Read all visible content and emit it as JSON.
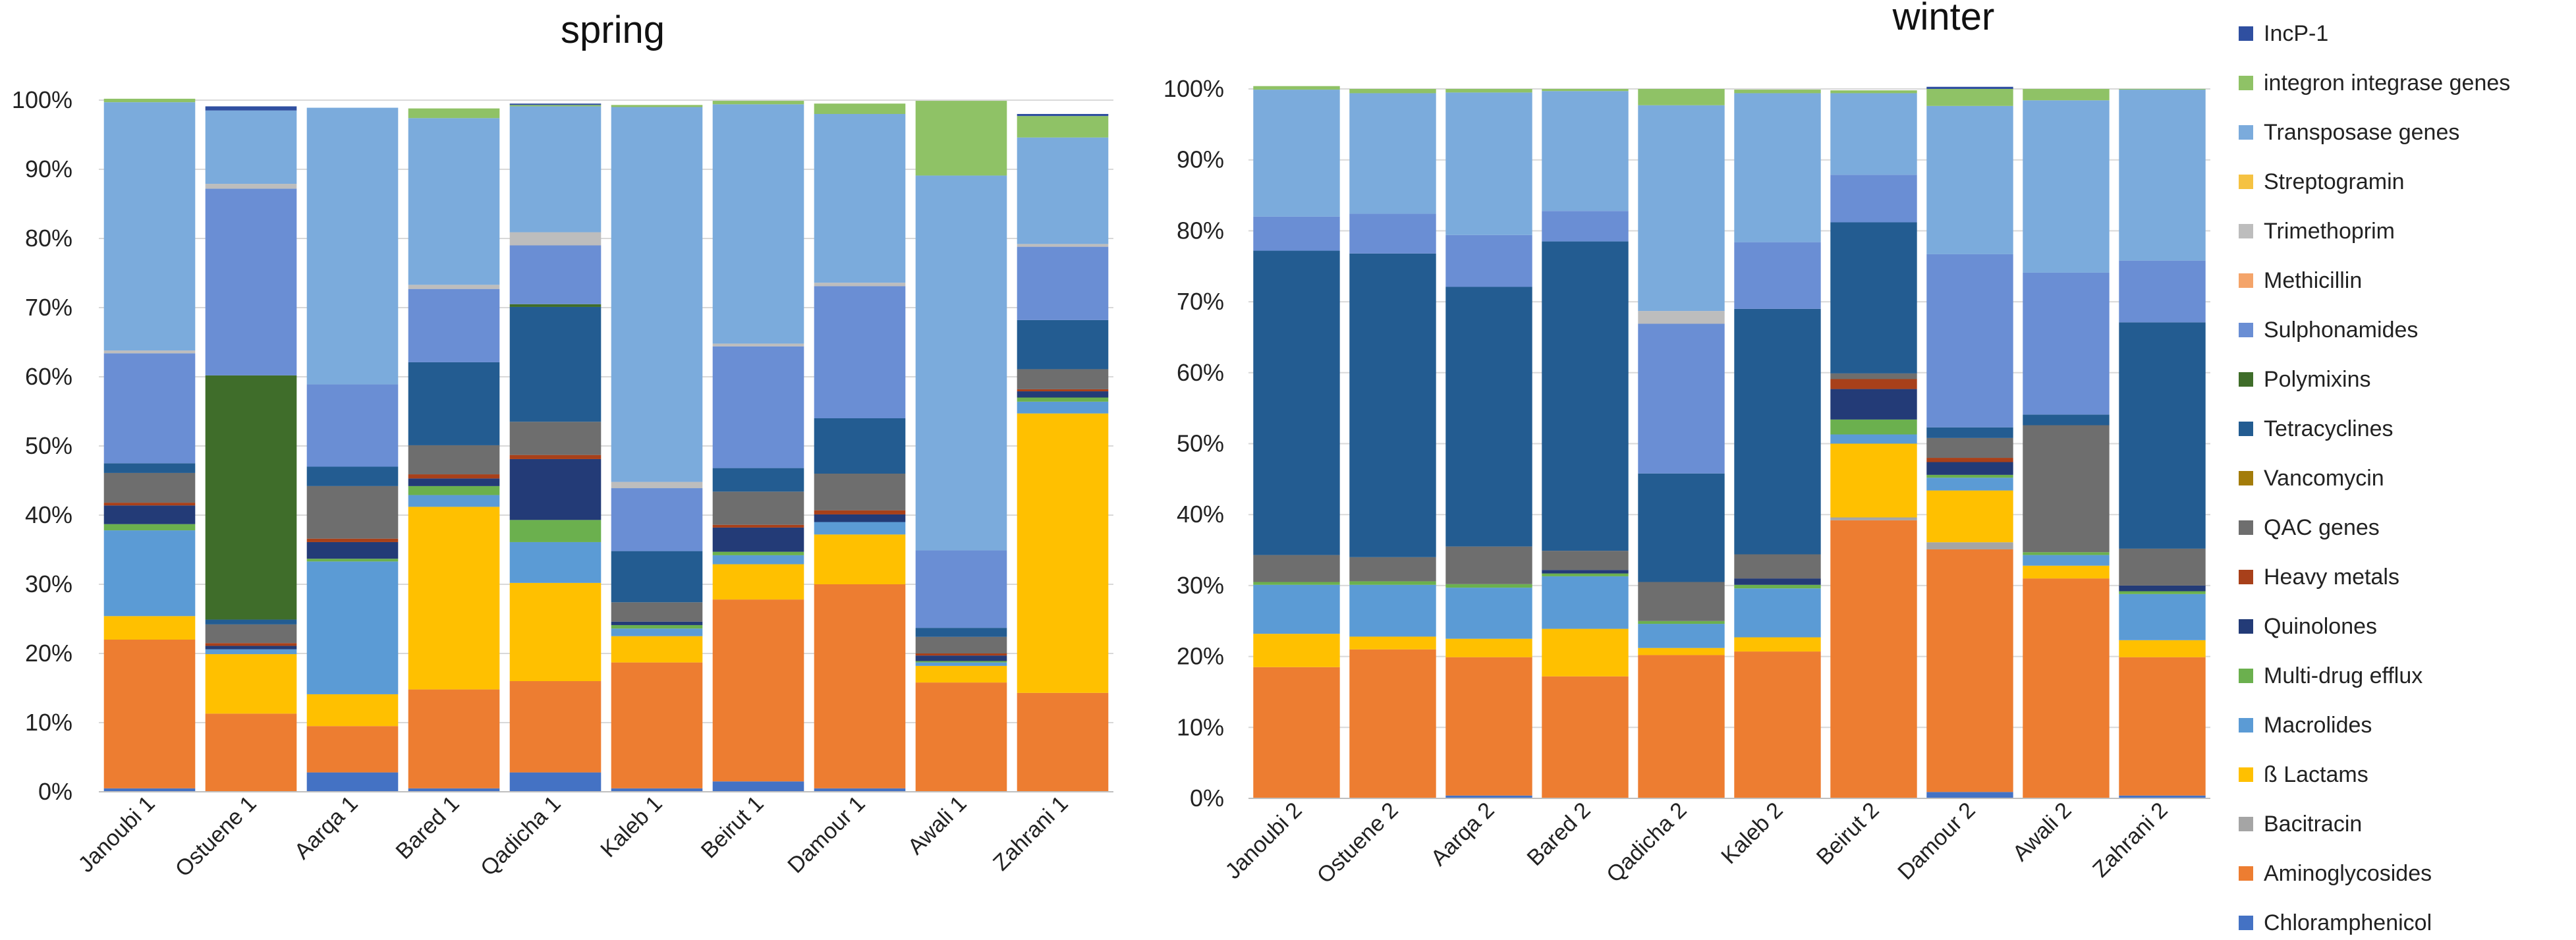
{
  "chart_data": [
    {
      "type": "bar",
      "stacked": true,
      "title": "spring",
      "categories": [
        "Janoubi 1",
        "Ostuene 1",
        "Aarqa 1",
        "Bared 1",
        "Qadicha 1",
        "Kaleb 1",
        "Beirut 1",
        "Damour 1",
        "Awali 1",
        "Zahrani 1"
      ],
      "ylim": [
        0,
        100
      ],
      "ytick_labels": [
        "0%",
        "10%",
        "20%",
        "30%",
        "40%",
        "50%",
        "60%",
        "70%",
        "80%",
        "90%",
        "100%"
      ],
      "series": [
        {
          "name": "Chloramphenicol",
          "values": [
            0.5,
            0,
            2.8,
            0.5,
            2.8,
            0.5,
            1.5,
            0.5,
            0,
            0
          ]
        },
        {
          "name": "Aminoglycosides",
          "values": [
            21.5,
            11.3,
            6.7,
            14.3,
            13.2,
            18.2,
            26.3,
            29.5,
            15.8,
            14.3
          ]
        },
        {
          "name": "Bacitracin",
          "values": [
            0,
            0,
            0,
            0,
            0,
            0,
            0,
            0,
            0,
            0
          ]
        },
        {
          "name": "ß Lactams",
          "values": [
            3.4,
            8.6,
            4.6,
            26.4,
            14.2,
            3.8,
            5.1,
            7.2,
            2.4,
            40.4
          ]
        },
        {
          "name": "Macrolides",
          "values": [
            12.4,
            0.7,
            19.2,
            1.7,
            5.9,
            1.1,
            1.3,
            1.8,
            0.5,
            1.7
          ]
        },
        {
          "name": "Multi-drug efflux",
          "values": [
            0.9,
            0,
            0.4,
            1.3,
            3.2,
            0.5,
            0.5,
            0,
            0.2,
            0.6
          ]
        },
        {
          "name": "Quinolones",
          "values": [
            2.7,
            0.5,
            2.4,
            1.1,
            8.8,
            0.5,
            3.5,
            1.1,
            0.8,
            0.9
          ]
        },
        {
          "name": "Heavy metals",
          "values": [
            0.4,
            0.4,
            0.5,
            0.6,
            0.6,
            0,
            0.4,
            0.6,
            0.3,
            0.3
          ]
        },
        {
          "name": "QAC genes",
          "values": [
            4.3,
            2.7,
            7.6,
            4.2,
            4.8,
            2.8,
            4.8,
            5.3,
            2.4,
            2.9
          ]
        },
        {
          "name": "Vancomycin",
          "values": [
            0,
            0,
            0,
            0,
            0,
            0,
            0,
            0,
            0,
            0
          ]
        },
        {
          "name": "Tetracyclines",
          "values": [
            1.4,
            0.7,
            2.8,
            12.0,
            16.6,
            7.4,
            3.4,
            8.0,
            1.3,
            7.1
          ]
        },
        {
          "name": "Polymixins",
          "values": [
            0,
            35.3,
            0,
            0,
            0.4,
            0,
            0,
            0,
            0,
            0
          ]
        },
        {
          "name": "Sulphonamides",
          "values": [
            15.9,
            27.0,
            11.9,
            10.6,
            8.5,
            9.1,
            17.6,
            19.1,
            11.2,
            10.6
          ]
        },
        {
          "name": "Methicillin",
          "values": [
            0,
            0,
            0,
            0,
            0,
            0,
            0,
            0,
            0,
            0
          ]
        },
        {
          "name": "Trimethoprim",
          "values": [
            0.4,
            0.7,
            0,
            0.6,
            1.9,
            0.9,
            0.4,
            0.5,
            0,
            0.4
          ]
        },
        {
          "name": "Transposase genes",
          "values": [
            35.9,
            10.6,
            40.0,
            24.1,
            18.2,
            54.2,
            34.6,
            24.4,
            54.2,
            15.4
          ]
        },
        {
          "name": "integron integrase genes",
          "values": [
            0.5,
            0,
            0,
            1.4,
            0.2,
            0.3,
            0.5,
            1.5,
            10.8,
            3.1
          ]
        },
        {
          "name": "IncP-1",
          "values": [
            0,
            0.6,
            0,
            0,
            0.2,
            0,
            0,
            0,
            0,
            0.3
          ]
        }
      ]
    },
    {
      "type": "bar",
      "stacked": true,
      "title": "winter",
      "categories": [
        "Janoubi 2",
        "Ostuene 2",
        "Aarqa 2",
        "Bared 2",
        "Qadicha 2",
        "Kaleb 2",
        "Beirut 2",
        "Damour 2",
        "Awali 2",
        "Zahrani 2"
      ],
      "ylim": [
        0,
        100
      ],
      "ytick_labels": [
        "0%",
        "10%",
        "20%",
        "30%",
        "40%",
        "50%",
        "60%",
        "70%",
        "80%",
        "90%",
        "100%"
      ],
      "series": [
        {
          "name": "Chloramphenicol",
          "values": [
            0,
            0,
            0.4,
            0,
            0,
            0,
            0,
            0.9,
            0,
            0.4
          ]
        },
        {
          "name": "Aminoglycosides",
          "values": [
            18.5,
            21.0,
            19.5,
            17.2,
            20.2,
            20.7,
            39.2,
            34.2,
            31.0,
            19.5
          ]
        },
        {
          "name": "Bacitracin",
          "values": [
            0,
            0,
            0,
            0,
            0,
            0,
            0.4,
            1.0,
            0,
            0
          ]
        },
        {
          "name": "ß Lactams",
          "values": [
            4.7,
            1.8,
            2.6,
            6.7,
            1.0,
            2.0,
            10.4,
            7.3,
            1.8,
            2.4
          ]
        },
        {
          "name": "Macrolides",
          "values": [
            6.9,
            7.3,
            7.2,
            7.4,
            3.4,
            6.9,
            1.3,
            1.8,
            1.5,
            6.5
          ]
        },
        {
          "name": "Multi-drug efflux",
          "values": [
            0.4,
            0.5,
            0.5,
            0.4,
            0.4,
            0.5,
            2.1,
            0.4,
            0.4,
            0.4
          ]
        },
        {
          "name": "Quinolones",
          "values": [
            0,
            0,
            0,
            0.5,
            0,
            0.9,
            4.3,
            1.8,
            0,
            0.8
          ]
        },
        {
          "name": "Heavy metals",
          "values": [
            0,
            0,
            0,
            0,
            0,
            0,
            1.4,
            0.6,
            0,
            0
          ]
        },
        {
          "name": "QAC genes",
          "values": [
            3.8,
            3.4,
            5.3,
            2.7,
            5.5,
            3.4,
            0.8,
            2.8,
            17.9,
            5.2
          ]
        },
        {
          "name": "Vancomycin",
          "values": [
            0,
            0,
            0,
            0,
            0,
            0,
            0,
            0,
            0,
            0
          ]
        },
        {
          "name": "Tetracyclines",
          "values": [
            42.9,
            42.8,
            36.6,
            43.6,
            15.3,
            34.6,
            21.3,
            1.5,
            1.5,
            31.9
          ]
        },
        {
          "name": "Polymixins",
          "values": [
            0,
            0,
            0,
            0,
            0,
            0,
            0,
            0,
            0,
            0
          ]
        },
        {
          "name": "Sulphonamides",
          "values": [
            4.8,
            5.6,
            7.3,
            4.3,
            21.1,
            9.4,
            6.7,
            24.4,
            20.0,
            8.7
          ]
        },
        {
          "name": "Methicillin",
          "values": [
            0,
            0,
            0,
            0,
            0,
            0,
            0,
            0,
            0,
            0
          ]
        },
        {
          "name": "Trimethoprim",
          "values": [
            0,
            0,
            0,
            0,
            1.8,
            0,
            0,
            0,
            0,
            0
          ]
        },
        {
          "name": "Transposase genes",
          "values": [
            17.9,
            17.0,
            20.1,
            16.9,
            29.0,
            21.0,
            11.5,
            20.9,
            24.3,
            24.1
          ]
        },
        {
          "name": "integron integrase genes",
          "values": [
            0.5,
            0.6,
            0.5,
            0.3,
            2.3,
            0.5,
            0.4,
            2.4,
            1.6,
            0.1
          ]
        },
        {
          "name": "IncP-1",
          "values": [
            0,
            0,
            0,
            0,
            0,
            0,
            0,
            0.3,
            0,
            0
          ]
        }
      ]
    }
  ],
  "legend": [
    {
      "name": "IncP-1",
      "color": "#2F4FA0"
    },
    {
      "name": "integron integrase genes",
      "color": "#8FC266"
    },
    {
      "name": "Transposase genes",
      "color": "#7BABDC"
    },
    {
      "name": "Streptogramin",
      "color": "#F5C242"
    },
    {
      "name": "Trimethoprim",
      "color": "#BDBDBD"
    },
    {
      "name": "Methicillin",
      "color": "#F4A46A"
    },
    {
      "name": "Sulphonamides",
      "color": "#6A8ED4"
    },
    {
      "name": "Polymixins",
      "color": "#3F6D2A"
    },
    {
      "name": "Tetracyclines",
      "color": "#235C91"
    },
    {
      "name": "Vancomycin",
      "color": "#A37C0A"
    },
    {
      "name": "QAC genes",
      "color": "#6E6E6E"
    },
    {
      "name": "Heavy metals",
      "color": "#A8401A"
    },
    {
      "name": "Quinolones",
      "color": "#233B77"
    },
    {
      "name": "Multi-drug efflux",
      "color": "#6BB04E"
    },
    {
      "name": "Macrolides",
      "color": "#5B9BD5"
    },
    {
      "name": "ß Lactams",
      "color": "#FFC000"
    },
    {
      "name": "Bacitracin",
      "color": "#A5A5A5"
    },
    {
      "name": "Aminoglycosides",
      "color": "#ED7D31"
    },
    {
      "name": "Chloramphenicol",
      "color": "#4472C4"
    }
  ]
}
